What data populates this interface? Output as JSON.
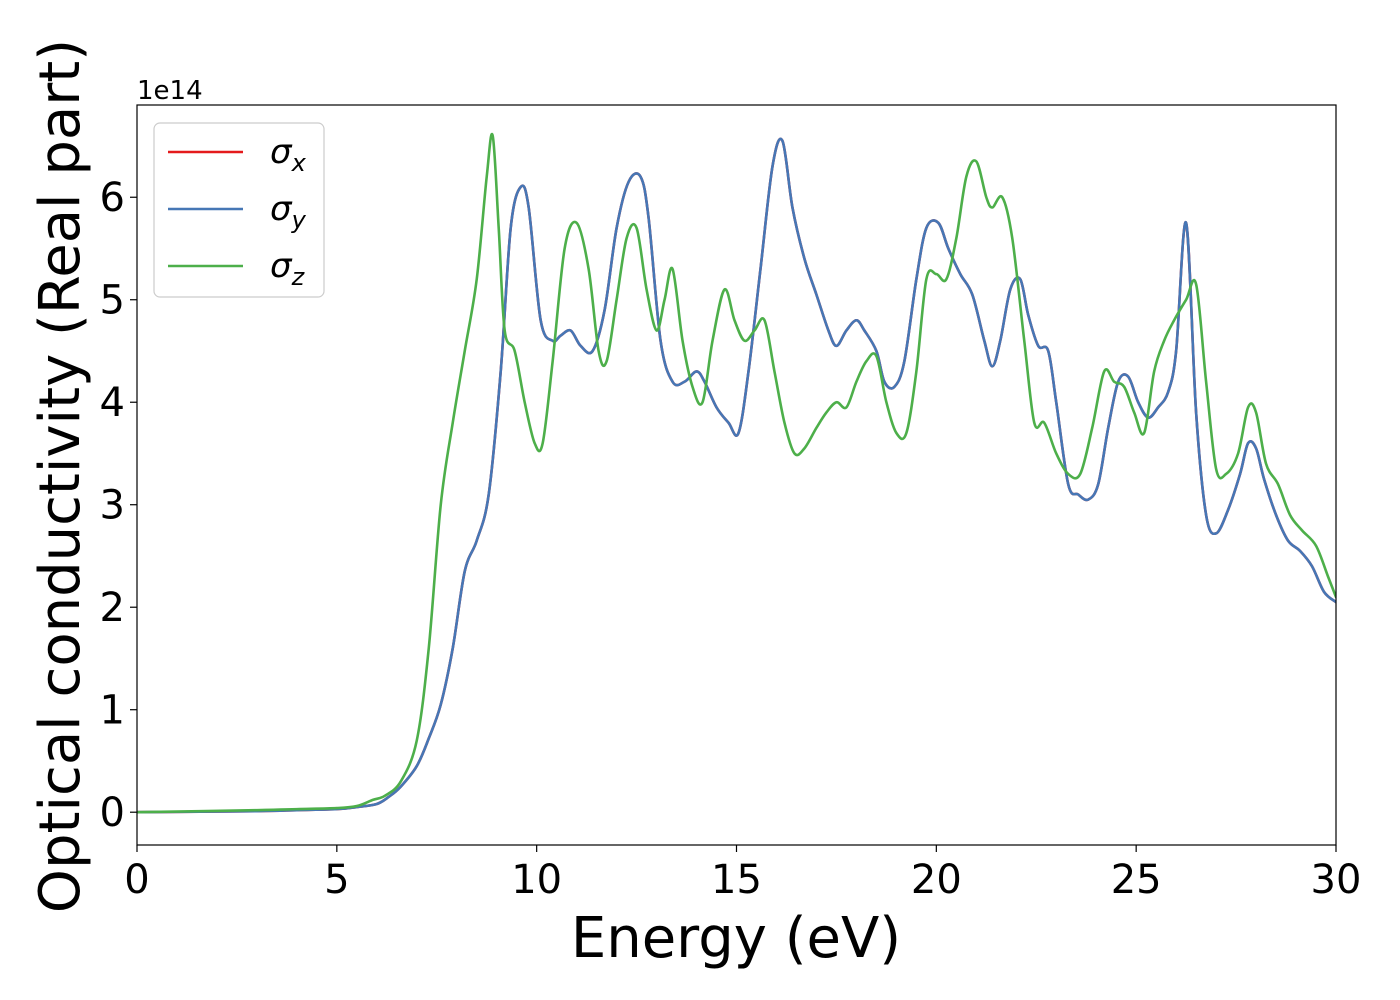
{
  "chart_data": {
    "type": "line",
    "xlabel": "Energy (eV)",
    "ylabel": "Optical conductivity (Real part)",
    "y_offset_text": "1e14",
    "xlim": [
      0,
      30
    ],
    "ylim": [
      -0.32,
      6.9
    ],
    "x_ticks": [
      0,
      5,
      10,
      15,
      20,
      25,
      30
    ],
    "x_tick_labels": [
      "0",
      "5",
      "10",
      "15",
      "20",
      "25",
      "30"
    ],
    "y_ticks": [
      0,
      1,
      2,
      3,
      4,
      5,
      6
    ],
    "y_tick_labels": [
      "0",
      "1",
      "2",
      "3",
      "4",
      "5",
      "6"
    ],
    "grid": false,
    "legend_position": "top-left",
    "series": [
      {
        "name": "σx",
        "legend_base": "σ",
        "legend_sub": "x",
        "color": "#e41a1c",
        "x": [
          0,
          3,
          4,
          5,
          5.5,
          6,
          6.3,
          6.6,
          7,
          7.3,
          7.6,
          7.9,
          8.2,
          8.5,
          8.8,
          9.1,
          9.35,
          9.6,
          9.8,
          10.1,
          10.4,
          10.6,
          10.85,
          11.1,
          11.4,
          11.7,
          12.0,
          12.3,
          12.6,
          12.8,
          13.1,
          13.4,
          13.7,
          14.0,
          14.2,
          14.5,
          14.8,
          15.05,
          15.3,
          15.6,
          15.9,
          16.15,
          16.4,
          16.7,
          17.0,
          17.3,
          17.5,
          17.75,
          18.0,
          18.2,
          18.5,
          18.7,
          18.95,
          19.2,
          19.5,
          19.75,
          20.05,
          20.3,
          20.6,
          20.9,
          21.2,
          21.4,
          21.6,
          21.85,
          22.1,
          22.3,
          22.55,
          22.8,
          23.0,
          23.3,
          23.55,
          23.8,
          24.05,
          24.3,
          24.55,
          24.8,
          25.05,
          25.3,
          25.55,
          25.8,
          26.0,
          26.25,
          26.5,
          26.75,
          27.0,
          27.3,
          27.6,
          27.8,
          28.0,
          28.2,
          28.5,
          28.8,
          29.1,
          29.4,
          29.7,
          30.0
        ],
        "y": [
          0,
          0.01,
          0.02,
          0.03,
          0.05,
          0.08,
          0.15,
          0.25,
          0.45,
          0.72,
          1.05,
          1.6,
          2.35,
          2.65,
          3.1,
          4.3,
          5.7,
          6.1,
          5.9,
          4.8,
          4.6,
          4.65,
          4.7,
          4.55,
          4.5,
          4.9,
          5.7,
          6.15,
          6.2,
          5.8,
          4.6,
          4.2,
          4.2,
          4.3,
          4.2,
          3.95,
          3.8,
          3.7,
          4.3,
          5.3,
          6.3,
          6.55,
          5.9,
          5.4,
          5.05,
          4.7,
          4.55,
          4.7,
          4.8,
          4.7,
          4.5,
          4.2,
          4.15,
          4.4,
          5.2,
          5.7,
          5.75,
          5.5,
          5.25,
          5.05,
          4.6,
          4.35,
          4.6,
          5.1,
          5.2,
          4.85,
          4.55,
          4.5,
          4.0,
          3.2,
          3.1,
          3.05,
          3.2,
          3.75,
          4.2,
          4.25,
          4.0,
          3.85,
          3.95,
          4.1,
          4.5,
          5.75,
          3.9,
          2.9,
          2.72,
          2.95,
          3.3,
          3.6,
          3.55,
          3.25,
          2.9,
          2.65,
          2.55,
          2.4,
          2.15,
          2.05
        ]
      },
      {
        "name": "σy",
        "legend_base": "σ",
        "legend_sub": "y",
        "color": "#4677b5",
        "x": [
          0,
          3,
          4,
          5,
          5.5,
          6,
          6.3,
          6.6,
          7,
          7.3,
          7.6,
          7.9,
          8.2,
          8.5,
          8.8,
          9.1,
          9.35,
          9.6,
          9.8,
          10.1,
          10.4,
          10.6,
          10.85,
          11.1,
          11.4,
          11.7,
          12.0,
          12.3,
          12.6,
          12.8,
          13.1,
          13.4,
          13.7,
          14.0,
          14.2,
          14.5,
          14.8,
          15.05,
          15.3,
          15.6,
          15.9,
          16.15,
          16.4,
          16.7,
          17.0,
          17.3,
          17.5,
          17.75,
          18.0,
          18.2,
          18.5,
          18.7,
          18.95,
          19.2,
          19.5,
          19.75,
          20.05,
          20.3,
          20.6,
          20.9,
          21.2,
          21.4,
          21.6,
          21.85,
          22.1,
          22.3,
          22.55,
          22.8,
          23.0,
          23.3,
          23.55,
          23.8,
          24.05,
          24.3,
          24.55,
          24.8,
          25.05,
          25.3,
          25.55,
          25.8,
          26.0,
          26.25,
          26.5,
          26.75,
          27.0,
          27.3,
          27.6,
          27.8,
          28.0,
          28.2,
          28.5,
          28.8,
          29.1,
          29.4,
          29.7,
          30.0
        ],
        "y": [
          0,
          0.01,
          0.02,
          0.03,
          0.05,
          0.08,
          0.15,
          0.25,
          0.45,
          0.72,
          1.05,
          1.6,
          2.35,
          2.65,
          3.1,
          4.3,
          5.7,
          6.1,
          5.9,
          4.8,
          4.6,
          4.65,
          4.7,
          4.55,
          4.5,
          4.9,
          5.7,
          6.15,
          6.2,
          5.8,
          4.6,
          4.2,
          4.2,
          4.3,
          4.2,
          3.95,
          3.8,
          3.7,
          4.3,
          5.3,
          6.3,
          6.55,
          5.9,
          5.4,
          5.05,
          4.7,
          4.55,
          4.7,
          4.8,
          4.7,
          4.5,
          4.2,
          4.15,
          4.4,
          5.2,
          5.7,
          5.75,
          5.5,
          5.25,
          5.05,
          4.6,
          4.35,
          4.6,
          5.1,
          5.2,
          4.85,
          4.55,
          4.5,
          4.0,
          3.2,
          3.1,
          3.05,
          3.2,
          3.75,
          4.2,
          4.25,
          4.0,
          3.85,
          3.95,
          4.1,
          4.5,
          5.75,
          3.9,
          2.9,
          2.72,
          2.95,
          3.3,
          3.6,
          3.55,
          3.25,
          2.9,
          2.65,
          2.55,
          2.4,
          2.15,
          2.05
        ]
      },
      {
        "name": "σz",
        "legend_base": "σ",
        "legend_sub": "z",
        "color": "#4daf4a",
        "x": [
          0,
          3,
          4,
          5,
          5.5,
          5.9,
          6.2,
          6.6,
          7.0,
          7.3,
          7.6,
          7.9,
          8.2,
          8.5,
          8.75,
          8.9,
          9.05,
          9.2,
          9.45,
          9.7,
          9.95,
          10.15,
          10.4,
          10.7,
          11.0,
          11.3,
          11.55,
          11.75,
          12.0,
          12.25,
          12.5,
          12.75,
          13.0,
          13.2,
          13.4,
          13.65,
          13.9,
          14.15,
          14.4,
          14.7,
          14.95,
          15.2,
          15.45,
          15.7,
          15.95,
          16.2,
          16.45,
          16.7,
          17.0,
          17.25,
          17.5,
          17.75,
          18.0,
          18.25,
          18.5,
          18.75,
          19.0,
          19.25,
          19.5,
          19.75,
          20.0,
          20.25,
          20.5,
          20.75,
          21.0,
          21.25,
          21.4,
          21.65,
          21.9,
          22.2,
          22.45,
          22.7,
          23.0,
          23.3,
          23.6,
          23.9,
          24.2,
          24.45,
          24.7,
          24.95,
          25.2,
          25.45,
          25.7,
          25.95,
          26.25,
          26.5,
          26.75,
          27.0,
          27.25,
          27.55,
          27.8,
          28.0,
          28.25,
          28.55,
          28.85,
          29.15,
          29.5,
          29.8,
          30.0
        ],
        "y": [
          0,
          0.02,
          0.03,
          0.04,
          0.06,
          0.12,
          0.16,
          0.3,
          0.7,
          1.6,
          3.0,
          3.8,
          4.5,
          5.2,
          6.2,
          6.6,
          5.7,
          4.7,
          4.5,
          4.0,
          3.6,
          3.6,
          4.4,
          5.5,
          5.75,
          5.3,
          4.5,
          4.4,
          5.0,
          5.6,
          5.7,
          5.1,
          4.7,
          5.0,
          5.3,
          4.6,
          4.15,
          4.0,
          4.6,
          5.1,
          4.8,
          4.6,
          4.7,
          4.8,
          4.3,
          3.8,
          3.5,
          3.55,
          3.75,
          3.9,
          4.0,
          3.95,
          4.2,
          4.4,
          4.45,
          4.0,
          3.7,
          3.7,
          4.3,
          5.2,
          5.25,
          5.2,
          5.6,
          6.2,
          6.35,
          6.0,
          5.9,
          6.0,
          5.6,
          4.6,
          3.8,
          3.8,
          3.5,
          3.3,
          3.3,
          3.75,
          4.3,
          4.2,
          4.15,
          3.9,
          3.7,
          4.3,
          4.6,
          4.8,
          5.0,
          5.15,
          4.2,
          3.35,
          3.3,
          3.5,
          3.95,
          3.9,
          3.4,
          3.2,
          2.9,
          2.75,
          2.6,
          2.3,
          2.1
        ]
      }
    ]
  }
}
